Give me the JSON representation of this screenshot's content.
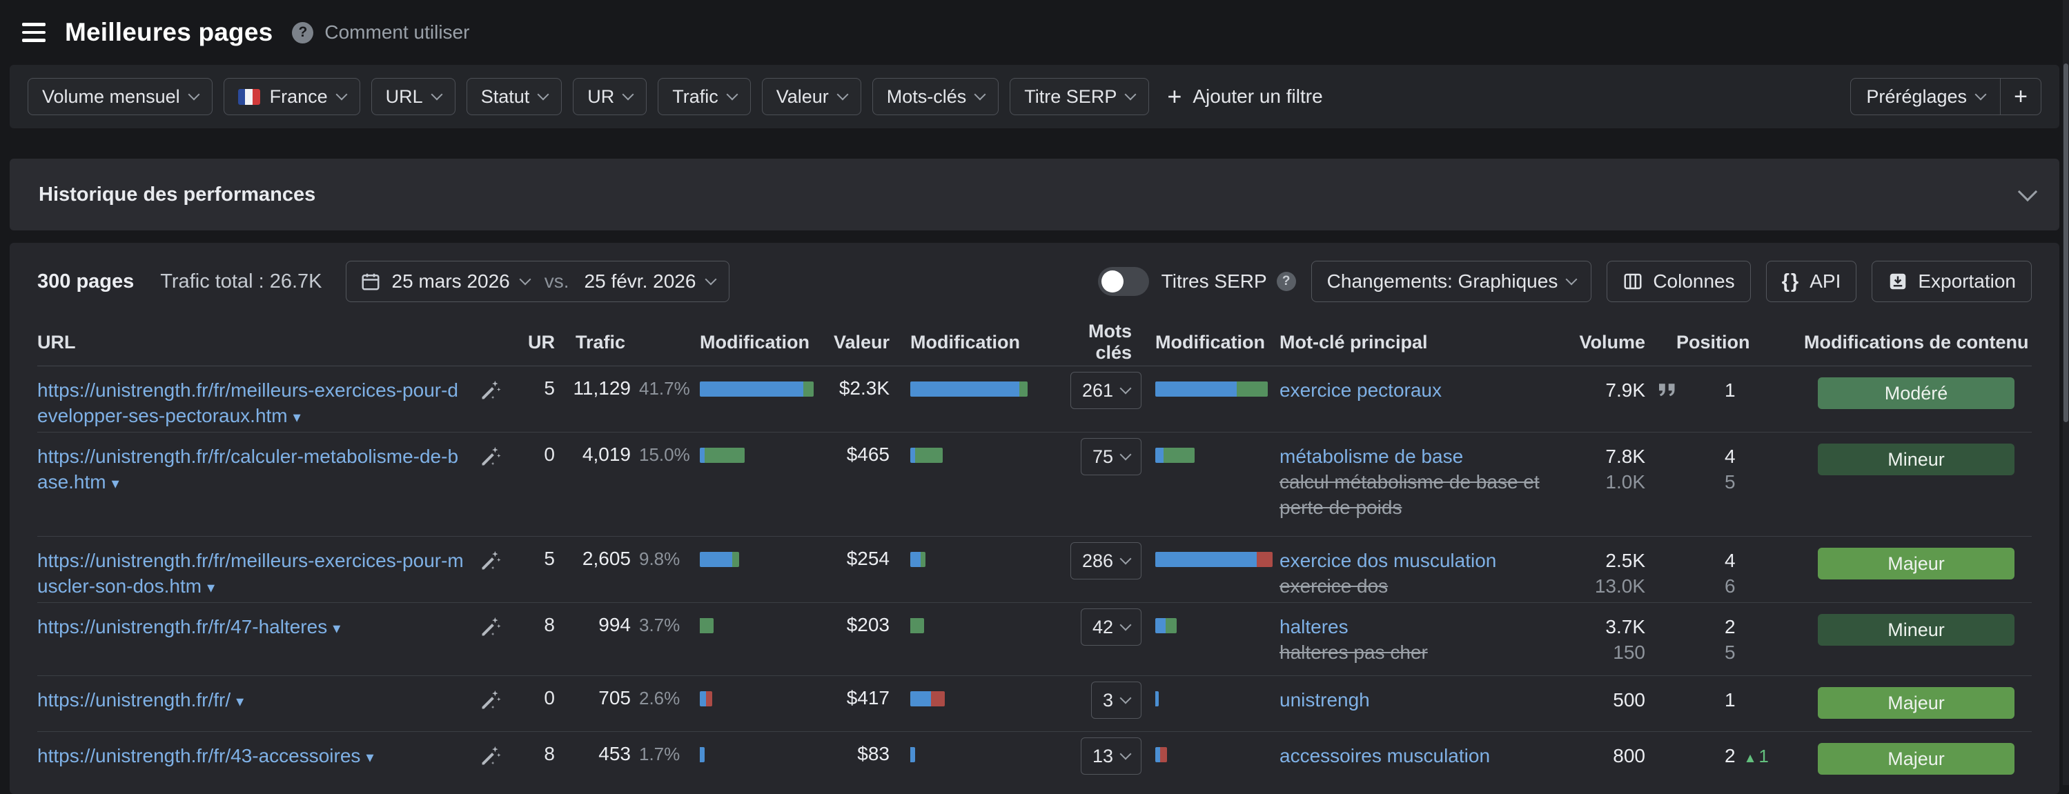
{
  "header": {
    "title": "Meilleures pages",
    "help_label": "Comment utiliser"
  },
  "filters": {
    "buttons": [
      {
        "label": "Volume mensuel",
        "flag": false
      },
      {
        "label": "France",
        "flag": true
      },
      {
        "label": "URL",
        "flag": false
      },
      {
        "label": "Statut",
        "flag": false
      },
      {
        "label": "UR",
        "flag": false
      },
      {
        "label": "Trafic",
        "flag": false
      },
      {
        "label": "Valeur",
        "flag": false
      },
      {
        "label": "Mots-clés",
        "flag": false
      },
      {
        "label": "Titre SERP",
        "flag": false
      }
    ],
    "add_filter_label": "Ajouter un filtre",
    "presets_label": "Préréglages"
  },
  "performance": {
    "title": "Historique des performances"
  },
  "toolbar": {
    "pages_count": "300 pages",
    "traffic_total": "Trafic total : 26.7K",
    "date_from": "25 mars 2026",
    "vs_label": "vs.",
    "date_to": "25 févr. 2026",
    "serp_toggle_label": "Titres SERP",
    "changes_label": "Changements: Graphiques",
    "columns_label": "Colonnes",
    "api_label": "API",
    "export_label": "Exportation"
  },
  "colors": {
    "bar_blue": "#4b8fd3",
    "bar_green": "#55915f",
    "bar_red": "#ac4b46",
    "badge_majeur": "#5f9a4d",
    "badge_modere": "#4b7d58",
    "badge_mineur": "#33553c",
    "link": "#7fb1e6",
    "position_up": "#63c07e"
  },
  "table": {
    "headers": [
      "URL",
      "UR",
      "Trafic",
      "Modification",
      "Valeur",
      "Modification",
      "Mots clés",
      "Modification",
      "Mot-clé principal",
      "Volume",
      "Position",
      "Modifications de contenu"
    ],
    "rows": [
      {
        "url": "https://unistrength.fr/fr/meilleurs-exercices-pour-developper-ses-pectoraux.htm",
        "ur": "5",
        "traffic": "11,129",
        "traffic_pct": "41.7%",
        "traffic_bar": [
          {
            "color": "blue",
            "width": 150
          },
          {
            "color": "green",
            "width": 15
          }
        ],
        "value": "$2.3K",
        "value_bar": [
          {
            "color": "blue",
            "width": 158
          },
          {
            "color": "green",
            "width": 12
          }
        ],
        "keywords": "261",
        "keywords_bar": [
          {
            "color": "blue",
            "width": 118
          },
          {
            "color": "green",
            "width": 45
          }
        ],
        "keyword": "exercice pectoraux",
        "keyword_alt": "",
        "volume": "7.9K",
        "volume_alt": "",
        "featured_snippet": true,
        "position": "1",
        "position_alt": "",
        "position_change": "",
        "badge": {
          "label": "Modéré",
          "type": "modere"
        }
      },
      {
        "url": "https://unistrength.fr/fr/calculer-metabolisme-de-base.htm",
        "ur": "0",
        "traffic": "4,019",
        "traffic_pct": "15.0%",
        "traffic_bar": [
          {
            "color": "blue",
            "width": 7
          },
          {
            "color": "green",
            "width": 58
          }
        ],
        "value": "$465",
        "value_bar": [
          {
            "color": "blue",
            "width": 7
          },
          {
            "color": "green",
            "width": 40
          }
        ],
        "keywords": "75",
        "keywords_bar": [
          {
            "color": "blue",
            "width": 12
          },
          {
            "color": "green",
            "width": 45
          }
        ],
        "keyword": "métabolisme de base",
        "keyword_alt": "calcul métabolisme de base et perte de poids",
        "volume": "7.8K",
        "volume_alt": "1.0K",
        "featured_snippet": false,
        "position": "4",
        "position_alt": "5",
        "position_change": "",
        "badge": {
          "label": "Mineur",
          "type": "mineur"
        }
      },
      {
        "url": "https://unistrength.fr/fr/meilleurs-exercices-pour-muscler-son-dos.htm",
        "ur": "5",
        "traffic": "2,605",
        "traffic_pct": "9.8%",
        "traffic_bar": [
          {
            "color": "blue",
            "width": 47
          },
          {
            "color": "green",
            "width": 10
          }
        ],
        "value": "$254",
        "value_bar": [
          {
            "color": "blue",
            "width": 15
          },
          {
            "color": "green",
            "width": 7
          }
        ],
        "keywords": "286",
        "keywords_bar": [
          {
            "color": "blue",
            "width": 175
          },
          {
            "color": "red",
            "width": 28
          }
        ],
        "keyword": "exercice dos musculation",
        "keyword_alt": "exercice dos",
        "volume": "2.5K",
        "volume_alt": "13.0K",
        "featured_snippet": false,
        "position": "4",
        "position_alt": "6",
        "position_change": "",
        "badge": {
          "label": "Majeur",
          "type": "majeur"
        }
      },
      {
        "url": "https://unistrength.fr/fr/47-halteres",
        "ur": "8",
        "traffic": "994",
        "traffic_pct": "3.7%",
        "traffic_bar": [
          {
            "color": "green",
            "width": 20
          }
        ],
        "value": "$203",
        "value_bar": [
          {
            "color": "green",
            "width": 20
          }
        ],
        "keywords": "42",
        "keywords_bar": [
          {
            "color": "blue",
            "width": 15
          },
          {
            "color": "green",
            "width": 16
          }
        ],
        "keyword": "halteres",
        "keyword_alt": "halteres pas cher",
        "volume": "3.7K",
        "volume_alt": "150",
        "featured_snippet": false,
        "position": "2",
        "position_alt": "5",
        "position_change": "",
        "badge": {
          "label": "Mineur",
          "type": "mineur"
        }
      },
      {
        "url": "https://unistrength.fr/fr/",
        "ur": "0",
        "traffic": "705",
        "traffic_pct": "2.6%",
        "traffic_bar": [
          {
            "color": "blue",
            "width": 9
          },
          {
            "color": "red",
            "width": 9
          }
        ],
        "value": "$417",
        "value_bar": [
          {
            "color": "blue",
            "width": 30
          },
          {
            "color": "red",
            "width": 20
          }
        ],
        "keywords": "3",
        "keywords_bar": [
          {
            "color": "blue",
            "width": 5
          }
        ],
        "keyword": "unistrengh",
        "keyword_alt": "",
        "volume": "500",
        "volume_alt": "",
        "featured_snippet": false,
        "position": "1",
        "position_alt": "",
        "position_change": "",
        "badge": {
          "label": "Majeur",
          "type": "majeur"
        }
      },
      {
        "url": "https://unistrength.fr/fr/43-accessoires",
        "ur": "8",
        "traffic": "453",
        "traffic_pct": "1.7%",
        "traffic_bar": [
          {
            "color": "blue",
            "width": 7
          }
        ],
        "value": "$83",
        "value_bar": [
          {
            "color": "blue",
            "width": 7
          }
        ],
        "keywords": "13",
        "keywords_bar": [
          {
            "color": "blue",
            "width": 7
          },
          {
            "color": "red",
            "width": 10
          }
        ],
        "keyword": "accessoires musculation",
        "keyword_alt": "",
        "volume": "800",
        "volume_alt": "",
        "featured_snippet": false,
        "position": "2",
        "position_alt": "",
        "position_change": "1",
        "badge": {
          "label": "Majeur",
          "type": "majeur"
        }
      }
    ]
  }
}
